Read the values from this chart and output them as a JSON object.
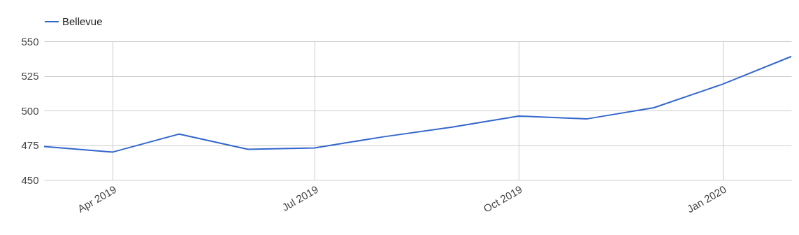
{
  "chart_data": {
    "type": "line",
    "x": [
      "2019-03",
      "2019-04",
      "2019-05",
      "2019-06",
      "2019-07",
      "2019-08",
      "2019-09",
      "2019-10",
      "2019-11",
      "2019-12",
      "2020-01",
      "2020-02"
    ],
    "series": [
      {
        "name": "Bellevue",
        "color": "#3366cc",
        "values": [
          474,
          470,
          483,
          472,
          473,
          481,
          488,
          496,
          494,
          502,
          519,
          539
        ]
      }
    ],
    "xlim": [
      "2019-03",
      "2020-02"
    ],
    "xticks": [
      {
        "value": "2019-04",
        "label": "Apr 2019"
      },
      {
        "value": "2019-07",
        "label": "Jul 2019"
      },
      {
        "value": "2019-10",
        "label": "Oct 2019"
      },
      {
        "value": "2020-01",
        "label": "Jan 2020"
      }
    ],
    "ylim": [
      450,
      550
    ],
    "yticks": [
      450,
      475,
      500,
      525,
      550
    ],
    "grid": true,
    "legend": "top",
    "marker": "none",
    "line_style": "solid"
  }
}
